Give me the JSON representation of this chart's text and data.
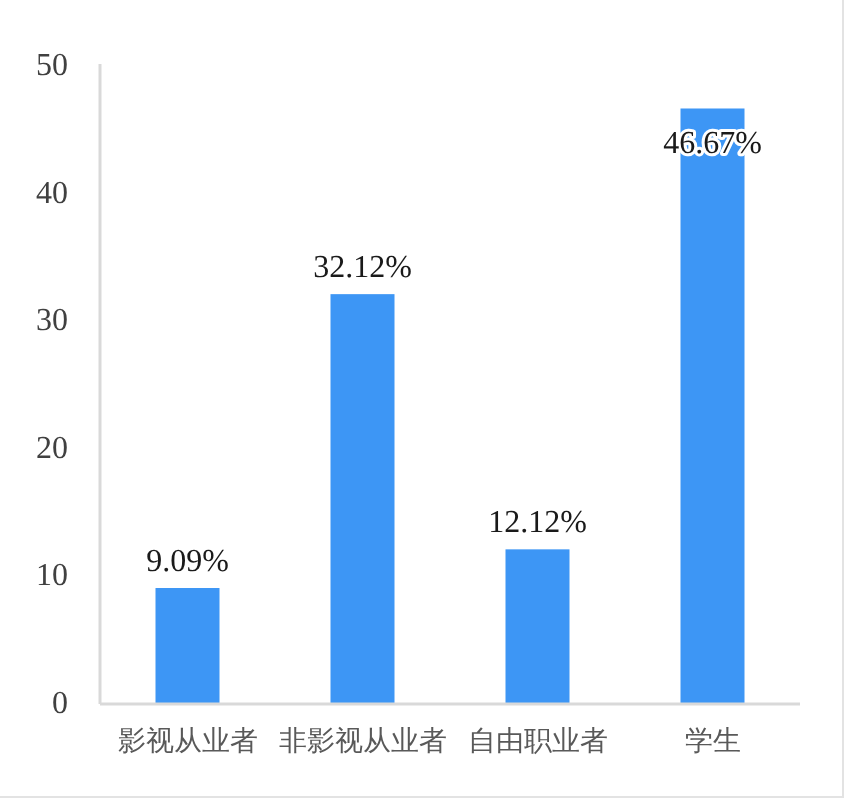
{
  "chart_data": {
    "type": "bar",
    "categories": [
      "影视从业者",
      "非影视从业者",
      "自由职业者",
      "学生"
    ],
    "values": [
      9.09,
      32.12,
      12.12,
      46.67
    ],
    "value_labels": [
      "9.09%",
      "32.12%",
      "12.12%",
      "46.67%"
    ],
    "color": "#3d96f5",
    "ylim": [
      0,
      50
    ],
    "yticks": [
      0,
      10,
      20,
      30,
      40,
      50
    ]
  }
}
